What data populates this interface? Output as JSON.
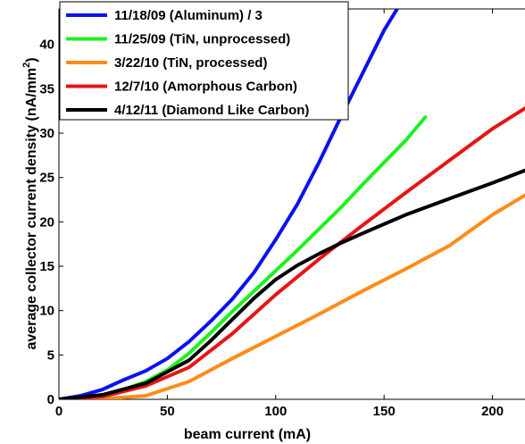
{
  "chart_data": {
    "type": "line",
    "title": "",
    "xlabel": "beam current (mA)",
    "ylabel": "average collector current density (nA/mm",
    "ylabel_sup": "2",
    "ylabel_tail": ")",
    "xlim": [
      0,
      215
    ],
    "ylim": [
      0,
      44
    ],
    "xticks": [
      0,
      50,
      100,
      150,
      200
    ],
    "xtick_labels": [
      "0",
      "50",
      "100",
      "150",
      "200"
    ],
    "yticks": [
      0,
      5,
      10,
      15,
      20,
      25,
      30,
      35,
      40
    ],
    "ytick_labels": [
      "0",
      "5",
      "10",
      "15",
      "20",
      "25",
      "30",
      "35",
      "40"
    ],
    "grid": false,
    "legend_position": "top-left",
    "series": [
      {
        "name": "11/18/09 (Aluminum) / 3",
        "color": "#0a12f0",
        "x": [
          0,
          10,
          20,
          30,
          40,
          50,
          60,
          70,
          80,
          90,
          100,
          110,
          120,
          130,
          140,
          150,
          156
        ],
        "y": [
          0,
          0.4,
          1.1,
          2.2,
          3.2,
          4.6,
          6.5,
          8.8,
          11.3,
          14.3,
          18.0,
          22.0,
          26.7,
          31.8,
          36.7,
          41.6,
          44
        ]
      },
      {
        "name": "11/25/09 (TiN, unprocessed)",
        "color": "#1ef01e",
        "x": [
          0,
          10,
          20,
          30,
          40,
          50,
          60,
          70,
          80,
          90,
          100,
          110,
          120,
          130,
          140,
          150,
          160,
          169
        ],
        "y": [
          0,
          0.2,
          0.5,
          1.1,
          2.0,
          3.3,
          5.2,
          7.5,
          9.9,
          12.2,
          14.5,
          16.8,
          19.2,
          21.6,
          24.2,
          26.7,
          29.2,
          31.8
        ]
      },
      {
        "name": "3/22/10 (TiN, processed)",
        "color": "#ff8c1a",
        "x": [
          0,
          20,
          40,
          60,
          80,
          100,
          120,
          140,
          160,
          180,
          200,
          215
        ],
        "y": [
          0,
          0.05,
          0.4,
          2.0,
          4.6,
          7.1,
          9.6,
          12.2,
          14.7,
          17.3,
          20.8,
          23.0
        ]
      },
      {
        "name": "12/7/10 (Amorphous Carbon)",
        "color": "#e81414",
        "x": [
          0,
          20,
          40,
          60,
          80,
          100,
          120,
          140,
          160,
          180,
          200,
          215
        ],
        "y": [
          0,
          0.3,
          1.5,
          3.6,
          7.4,
          11.8,
          15.8,
          19.6,
          23.3,
          26.9,
          30.5,
          32.8
        ]
      },
      {
        "name": "4/12/11 (Diamond Like Carbon)",
        "color": "#000000",
        "x": [
          0,
          20,
          40,
          60,
          70,
          80,
          90,
          100,
          110,
          120,
          130,
          140,
          160,
          180,
          200,
          215
        ],
        "y": [
          0,
          0.5,
          1.8,
          4.4,
          6.6,
          9.0,
          11.4,
          13.5,
          15.1,
          16.4,
          17.6,
          18.7,
          20.8,
          22.6,
          24.4,
          25.8
        ]
      }
    ]
  }
}
